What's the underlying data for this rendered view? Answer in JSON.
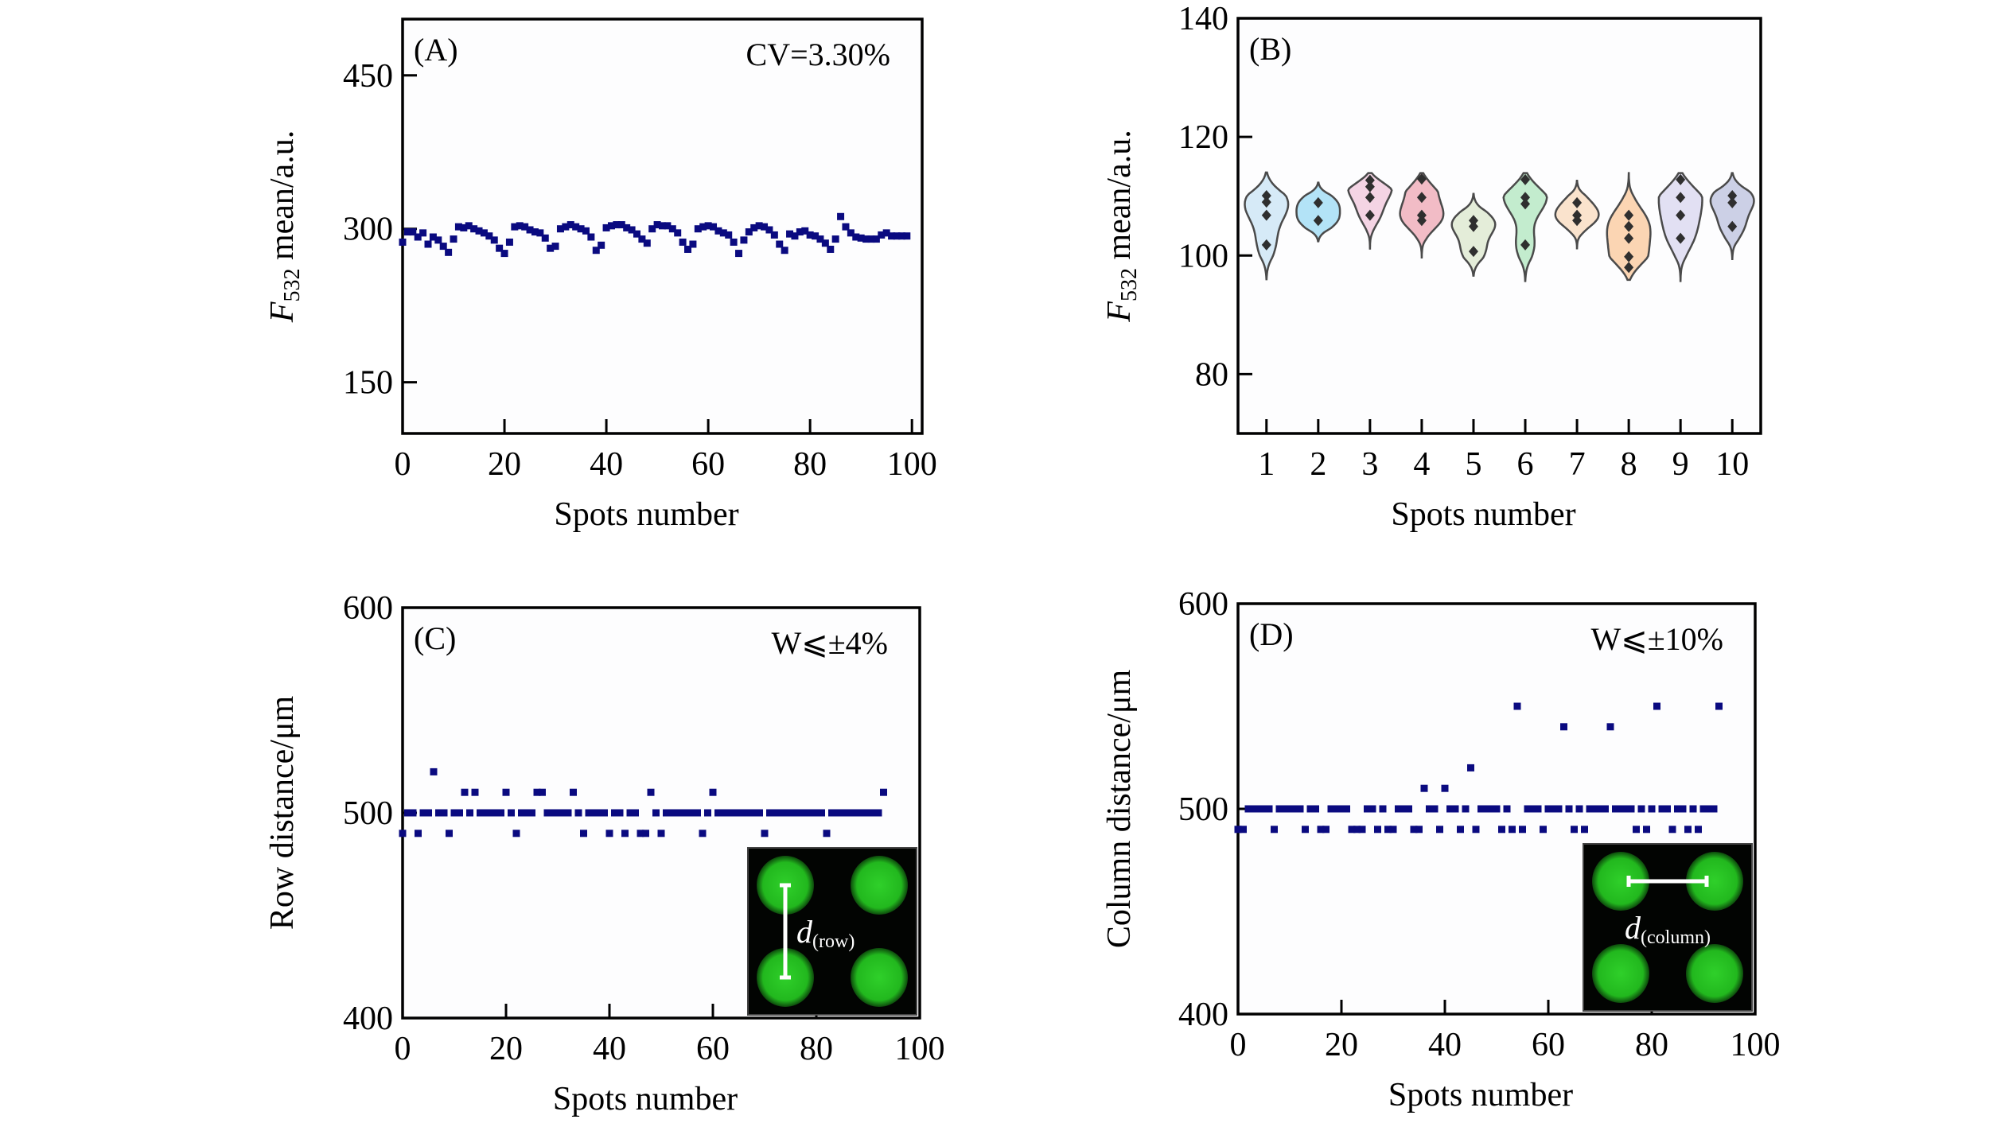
{
  "chart_data": [
    {
      "id": "A",
      "type": "scatter",
      "panel_label": "(A)",
      "annotation": "CV=3.30%",
      "title": "",
      "xlabel": "Spots number",
      "ylabel_main": "F",
      "ylabel_sub": "532",
      "ylabel_rest": " mean/a.u.",
      "xlim": [
        0,
        102
      ],
      "ylim": [
        100,
        505
      ],
      "xticks": [
        0,
        20,
        40,
        60,
        80,
        100
      ],
      "xtick_labels": [
        "0",
        "20",
        "40",
        "60",
        "80",
        "100"
      ],
      "yticks": [
        150,
        300,
        450
      ],
      "ytick_labels": [
        "150",
        "300",
        "450"
      ],
      "marker_color": "#0a0a80",
      "x": [
        0,
        1,
        2,
        3,
        4,
        5,
        6,
        7,
        8,
        9,
        10,
        11,
        12,
        13,
        14,
        15,
        16,
        17,
        18,
        19,
        20,
        21,
        22,
        23,
        24,
        25,
        26,
        27,
        28,
        29,
        30,
        31,
        32,
        33,
        34,
        35,
        36,
        37,
        38,
        39,
        40,
        41,
        42,
        43,
        44,
        45,
        46,
        47,
        48,
        49,
        50,
        51,
        52,
        53,
        54,
        55,
        56,
        57,
        58,
        59,
        60,
        61,
        62,
        63,
        64,
        65,
        66,
        67,
        68,
        69,
        70,
        71,
        72,
        73,
        74,
        75,
        76,
        77,
        78,
        79,
        80,
        81,
        82,
        83,
        84,
        85,
        86,
        87,
        88,
        89,
        90,
        91,
        92,
        93,
        94,
        95,
        96,
        97,
        98,
        99
      ],
      "y": [
        287,
        297,
        297,
        292,
        296,
        285,
        292,
        289,
        283,
        277,
        290,
        302,
        301,
        303,
        300,
        298,
        296,
        293,
        289,
        281,
        276,
        287,
        302,
        303,
        302,
        299,
        297,
        296,
        291,
        281,
        283,
        300,
        302,
        304,
        302,
        300,
        298,
        292,
        279,
        284,
        301,
        303,
        304,
        304,
        301,
        299,
        295,
        290,
        286,
        300,
        304,
        303,
        303,
        300,
        296,
        287,
        280,
        285,
        300,
        302,
        303,
        302,
        298,
        296,
        294,
        287,
        276,
        289,
        297,
        301,
        303,
        302,
        299,
        294,
        285,
        279,
        295,
        293,
        297,
        298,
        294,
        293,
        290,
        286,
        280,
        290,
        312,
        302,
        296,
        292,
        291,
        290,
        290,
        290,
        294,
        296,
        293,
        293,
        293,
        293
      ],
      "grid": false,
      "legend": "none"
    },
    {
      "id": "B",
      "type": "violin",
      "panel_label": "(B)",
      "title": "",
      "xlabel": "Spots number",
      "ylabel_main": "F",
      "ylabel_sub": "532",
      "ylabel_rest": " mean/a.u.",
      "ylim": [
        70,
        140
      ],
      "yticks": [
        80,
        100,
        120,
        140
      ],
      "ytick_labels": [
        "80",
        "100",
        "120",
        "140"
      ],
      "categories": [
        "1",
        "2",
        "3",
        "4",
        "5",
        "6",
        "7",
        "8",
        "9",
        "10"
      ],
      "series": [
        {
          "name": "1",
          "color": "#d6eaf7",
          "points": [
            110.1,
            109.0,
            106.8,
            101.8
          ],
          "min": 96.0,
          "max": 114.0
        },
        {
          "name": "2",
          "color": "#b3e3f7",
          "points": [
            108.9,
            105.9
          ],
          "min": 102.4,
          "max": 112.3
        },
        {
          "name": "3",
          "color": "#f4d4e4",
          "points": [
            112.7,
            111.6,
            109.8,
            106.8
          ],
          "min": 101.0,
          "max": 113.9
        },
        {
          "name": "4",
          "color": "#f2bcc6",
          "points": [
            112.9,
            109.8,
            106.8,
            105.9
          ],
          "min": 99.5,
          "max": 113.9
        },
        {
          "name": "5",
          "color": "#e4edd9",
          "points": [
            105.9,
            104.9,
            100.7
          ],
          "min": 96.6,
          "max": 110.4
        },
        {
          "name": "6",
          "color": "#c3ecce",
          "points": [
            112.8,
            109.8,
            108.7,
            101.8
          ],
          "min": 95.7,
          "max": 113.9
        },
        {
          "name": "7",
          "color": "#fae3cd",
          "points": [
            108.9,
            106.8,
            105.9
          ],
          "min": 101.2,
          "max": 112.6
        },
        {
          "name": "8",
          "color": "#fbd5b3",
          "points": [
            106.8,
            104.9,
            102.9,
            99.8,
            98.0
          ],
          "min": 95.9,
          "max": 113.9
        },
        {
          "name": "9",
          "color": "#e2e0f3",
          "points": [
            112.8,
            109.8,
            106.8,
            102.9
          ],
          "min": 95.7,
          "max": 113.9
        },
        {
          "name": "10",
          "color": "#ccd0e6",
          "points": [
            110.1,
            108.9,
            104.9
          ],
          "min": 99.4,
          "max": 113.9
        }
      ],
      "point_color": "#2f2f2f",
      "outline_color": "#4a4a4a",
      "grid": false,
      "legend": "none"
    },
    {
      "id": "C",
      "type": "scatter",
      "panel_label": "(C)",
      "annotation": "W⩽±4%",
      "title": "",
      "xlabel": "Spots number",
      "ylabel": "Row distance/μm",
      "xlim": [
        0,
        100
      ],
      "ylim": [
        400,
        600
      ],
      "xticks": [
        0,
        20,
        40,
        60,
        80,
        100
      ],
      "xtick_labels": [
        "0",
        "20",
        "40",
        "60",
        "80",
        "100"
      ],
      "yticks": [
        400,
        500,
        600
      ],
      "ytick_labels": [
        "400",
        "500",
        "600"
      ],
      "marker_color": "#0a0a80",
      "x": [
        0,
        1,
        2,
        3,
        4,
        5,
        6,
        7,
        8,
        9,
        10,
        11,
        12,
        13,
        14,
        15,
        16,
        17,
        18,
        19,
        20,
        21,
        22,
        23,
        24,
        25,
        26,
        27,
        28,
        29,
        30,
        31,
        32,
        33,
        34,
        35,
        36,
        37,
        38,
        39,
        40,
        41,
        42,
        43,
        44,
        45,
        46,
        47,
        48,
        49,
        50,
        51,
        52,
        53,
        54,
        55,
        56,
        57,
        58,
        59,
        60,
        61,
        62,
        63,
        64,
        65,
        66,
        67,
        68,
        69,
        70,
        71,
        72,
        73,
        74,
        75,
        76,
        77,
        78,
        79,
        80,
        81,
        82,
        83,
        84,
        85,
        86,
        87,
        88,
        89,
        90,
        91,
        92,
        93
      ],
      "y": [
        490,
        500,
        500,
        490,
        500,
        500,
        520,
        500,
        500,
        490,
        500,
        500,
        510,
        500,
        510,
        500,
        500,
        500,
        500,
        500,
        510,
        500,
        490,
        500,
        500,
        500,
        510,
        510,
        500,
        500,
        500,
        500,
        500,
        510,
        500,
        490,
        500,
        500,
        500,
        500,
        490,
        500,
        500,
        490,
        500,
        500,
        490,
        490,
        510,
        500,
        490,
        500,
        500,
        500,
        500,
        500,
        500,
        500,
        490,
        500,
        510,
        500,
        500,
        500,
        500,
        500,
        500,
        500,
        500,
        500,
        490,
        500,
        500,
        500,
        500,
        500,
        500,
        500,
        500,
        500,
        500,
        500,
        490,
        500,
        500,
        500,
        500,
        500,
        500,
        500,
        500,
        500,
        500,
        510
      ],
      "inset": {
        "label_main": "d",
        "label_sub": "(row)",
        "orientation": "vertical"
      },
      "grid": false,
      "legend": "none"
    },
    {
      "id": "D",
      "type": "scatter",
      "panel_label": "(D)",
      "annotation": "W⩽±10%",
      "title": "",
      "xlabel": "Spots number",
      "ylabel": "Column distance/μm",
      "xlim": [
        0,
        100
      ],
      "ylim": [
        400,
        600
      ],
      "xticks": [
        0,
        20,
        40,
        60,
        80,
        100
      ],
      "xtick_labels": [
        "0",
        "20",
        "40",
        "60",
        "80",
        "100"
      ],
      "yticks": [
        400,
        500,
        600
      ],
      "ytick_labels": [
        "400",
        "500",
        "600"
      ],
      "marker_color": "#0a0a80",
      "x": [
        0,
        1,
        2,
        3,
        4,
        5,
        6,
        7,
        8,
        9,
        10,
        11,
        12,
        13,
        14,
        15,
        16,
        17,
        18,
        19,
        20,
        21,
        22,
        23,
        24,
        25,
        26,
        27,
        28,
        29,
        30,
        31,
        32,
        33,
        34,
        35,
        36,
        37,
        38,
        39,
        40,
        41,
        42,
        43,
        44,
        45,
        46,
        47,
        48,
        49,
        50,
        51,
        52,
        53,
        54,
        55,
        56,
        57,
        58,
        59,
        60,
        61,
        62,
        63,
        64,
        65,
        66,
        67,
        68,
        69,
        70,
        71,
        72,
        73,
        74,
        75,
        76,
        77,
        78,
        79,
        80,
        81,
        82,
        83,
        84,
        85,
        86,
        87,
        88,
        89,
        90,
        91,
        92,
        93
      ],
      "y": [
        490,
        490,
        500,
        500,
        500,
        500,
        500,
        490,
        500,
        500,
        500,
        500,
        500,
        490,
        500,
        500,
        490,
        490,
        500,
        500,
        500,
        500,
        490,
        490,
        490,
        500,
        500,
        490,
        500,
        490,
        490,
        500,
        500,
        500,
        490,
        490,
        510,
        500,
        500,
        490,
        510,
        500,
        500,
        490,
        500,
        520,
        490,
        500,
        500,
        500,
        500,
        490,
        500,
        490,
        550,
        490,
        500,
        500,
        500,
        490,
        500,
        500,
        500,
        540,
        500,
        490,
        500,
        490,
        500,
        500,
        500,
        500,
        540,
        500,
        500,
        500,
        500,
        490,
        500,
        490,
        500,
        550,
        500,
        500,
        490,
        500,
        500,
        490,
        500,
        490,
        500,
        500,
        500,
        550
      ],
      "inset": {
        "label_main": "d",
        "label_sub": "(column)",
        "orientation": "horizontal"
      },
      "grid": false,
      "legend": "none"
    }
  ]
}
